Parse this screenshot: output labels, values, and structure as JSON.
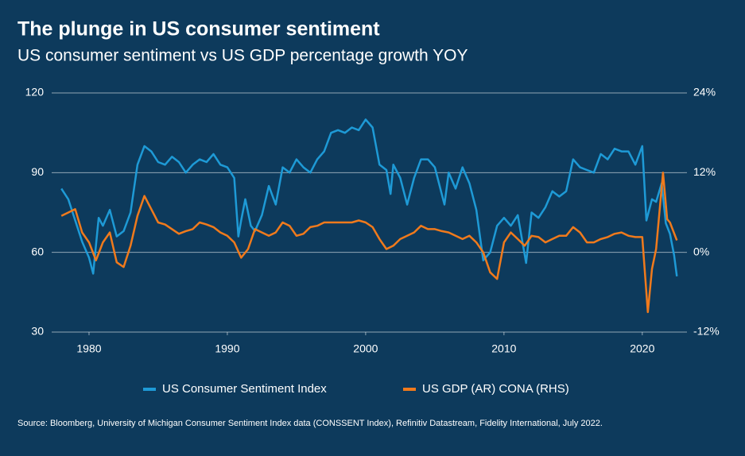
{
  "chart_data": {
    "type": "line",
    "title": "The plunge in US consumer sentiment",
    "subtitle": "US consumer sentiment vs US GDP percentage growth YOY",
    "source": "Source: Bloomberg, University of Michigan Consumer Sentiment Index data (CONSSENT Index), Refinitiv Datastream, Fidelity International, July 2022.",
    "xlim": [
      1977.3,
      2023
    ],
    "xticks": [
      1980,
      1990,
      2000,
      2010,
      2020
    ],
    "ylim": [
      30,
      120
    ],
    "yticks": [
      30,
      60,
      90,
      120
    ],
    "y2lim": [
      -12,
      24
    ],
    "y2ticks": [
      {
        "value": -12,
        "label": "-12%"
      },
      {
        "value": 0,
        "label": "0%"
      },
      {
        "value": 12,
        "label": "12%"
      },
      {
        "value": 24,
        "label": "24%"
      }
    ],
    "grid": true,
    "legend": "bottom",
    "series": [
      {
        "name": "US Consumer Sentiment Index",
        "color": "#1e9ad6",
        "x": [
          1978,
          1978.5,
          1979,
          1979.5,
          1980,
          1980.3,
          1980.7,
          1981,
          1981.5,
          1982,
          1982.5,
          1983,
          1983.5,
          1984,
          1984.5,
          1985,
          1985.5,
          1986,
          1986.5,
          1987,
          1987.5,
          1988,
          1988.5,
          1989,
          1989.5,
          1990,
          1990.5,
          1990.8,
          1991,
          1991.3,
          1991.7,
          1992,
          1992.5,
          1993,
          1993.5,
          1994,
          1994.5,
          1995,
          1995.5,
          1996,
          1996.5,
          1997,
          1997.5,
          1998,
          1998.5,
          1999,
          1999.5,
          2000,
          2000.5,
          2001,
          2001.5,
          2001.8,
          2002,
          2002.5,
          2003,
          2003.5,
          2004,
          2004.5,
          2005,
          2005.7,
          2006,
          2006.5,
          2007,
          2007.5,
          2008,
          2008.5,
          2009,
          2009.5,
          2010,
          2010.5,
          2011,
          2011.6,
          2012,
          2012.5,
          2013,
          2013.5,
          2014,
          2014.5,
          2015,
          2015.5,
          2016,
          2016.5,
          2017,
          2017.5,
          2018,
          2018.5,
          2019,
          2019.5,
          2020,
          2020.3,
          2020.7,
          2021,
          2021.4,
          2021.7,
          2022,
          2022.3,
          2022.5
        ],
        "values": [
          84,
          80,
          72,
          64,
          58,
          52,
          73,
          70,
          76,
          66,
          68,
          75,
          93,
          100,
          98,
          94,
          93,
          96,
          94,
          90,
          93,
          95,
          94,
          97,
          93,
          92,
          88,
          66,
          72,
          80,
          70,
          68,
          74,
          85,
          78,
          92,
          90,
          95,
          92,
          90,
          95,
          98,
          105,
          106,
          105,
          107,
          106,
          110,
          107,
          93,
          91,
          82,
          93,
          88,
          78,
          88,
          95,
          95,
          92,
          78,
          90,
          84,
          92,
          86,
          76,
          57,
          60,
          70,
          73,
          70,
          74,
          56,
          75,
          73,
          77,
          83,
          81,
          83,
          95,
          92,
          91,
          90,
          97,
          95,
          99,
          98,
          98,
          93,
          100,
          72,
          80,
          79,
          86,
          71,
          67,
          59,
          51
        ]
      },
      {
        "name": "US GDP (AR) CONA (RHS)",
        "color": "#f07a1c",
        "axis": "y2",
        "x": [
          1978,
          1978.5,
          1979,
          1979.5,
          1980,
          1980.5,
          1981,
          1981.5,
          1982,
          1982.5,
          1983,
          1983.5,
          1984,
          1984.5,
          1985,
          1985.5,
          1986,
          1986.5,
          1987,
          1987.5,
          1988,
          1988.5,
          1989,
          1989.5,
          1990,
          1990.5,
          1991,
          1991.5,
          1992,
          1992.5,
          1993,
          1993.5,
          1994,
          1994.5,
          1995,
          1995.5,
          1996,
          1996.5,
          1997,
          1997.5,
          1998,
          1998.5,
          1999,
          1999.5,
          2000,
          2000.5,
          2001,
          2001.5,
          2002,
          2002.5,
          2003,
          2003.5,
          2004,
          2004.5,
          2005,
          2005.5,
          2006,
          2006.5,
          2007,
          2007.5,
          2008,
          2008.5,
          2009,
          2009.5,
          2010,
          2010.5,
          2011,
          2011.5,
          2012,
          2012.5,
          2013,
          2013.5,
          2014,
          2014.5,
          2015,
          2015.5,
          2016,
          2016.5,
          2017,
          2017.5,
          2018,
          2018.5,
          2019,
          2019.5,
          2020,
          2020.4,
          2020.7,
          2021,
          2021.5,
          2021.8,
          2022,
          2022.5
        ],
        "values": [
          5.5,
          6.0,
          6.5,
          3,
          1.5,
          -1.2,
          1.5,
          3,
          -1.5,
          -2.2,
          1,
          5.5,
          8.5,
          6.5,
          4.5,
          4.2,
          3.5,
          2.8,
          3.2,
          3.5,
          4.5,
          4.2,
          3.8,
          3.0,
          2.5,
          1.5,
          -0.8,
          0.5,
          3.5,
          3.0,
          2.5,
          3.0,
          4.5,
          4.0,
          2.5,
          2.8,
          3.8,
          4.0,
          4.5,
          4.5,
          4.5,
          4.5,
          4.5,
          4.8,
          4.5,
          3.8,
          2.0,
          0.5,
          1.0,
          2.0,
          2.5,
          3.0,
          4.0,
          3.5,
          3.5,
          3.2,
          3.0,
          2.5,
          2.0,
          2.5,
          1.5,
          0.0,
          -3.0,
          -4.0,
          1.5,
          3.0,
          2.0,
          1.0,
          2.5,
          2.3,
          1.5,
          2.0,
          2.5,
          2.5,
          3.8,
          3.0,
          1.5,
          1.5,
          2.0,
          2.3,
          2.8,
          3.0,
          2.5,
          2.3,
          2.3,
          -9.0,
          -2.5,
          0.5,
          12.0,
          5.0,
          4.5,
          1.8
        ]
      }
    ]
  }
}
